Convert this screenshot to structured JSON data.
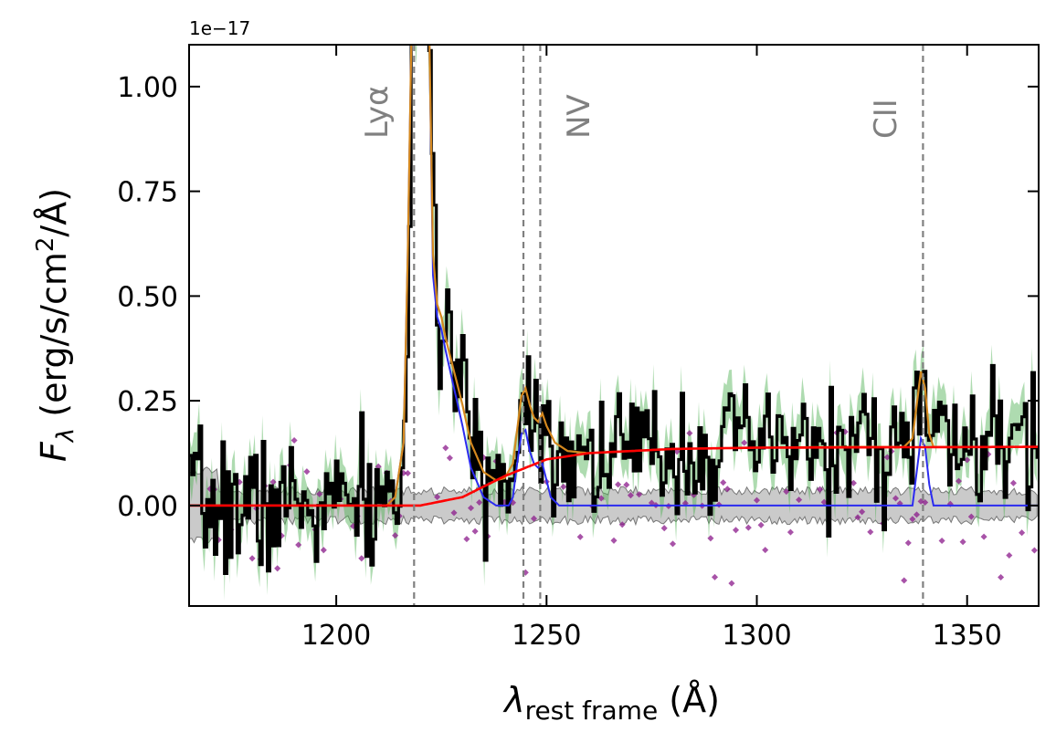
{
  "chart_data": {
    "type": "line",
    "x_unit_note": "rest-frame wavelength in Angstrom",
    "xlim": [
      1165,
      1367
    ],
    "ylim": [
      -0.24,
      1.1
    ],
    "y_offset_text": "1e−17",
    "xticks": [
      1200,
      1250,
      1300,
      1350
    ],
    "yticks": [
      0.0,
      0.25,
      0.5,
      0.75,
      1.0
    ],
    "ytick_labels": [
      "0.00",
      "0.25",
      "0.50",
      "0.75",
      "1.00"
    ],
    "xtick_labels": [
      "1200",
      "1250",
      "1300",
      "1350"
    ],
    "grid": false,
    "colors": {
      "spectrum": "#000000",
      "spectrum_band": "#4caf50",
      "error_band": "#9e9e9e",
      "model_total": "#d4881e",
      "model_lines": "#2b2bf0",
      "continuum": "#ff0000",
      "residual_points": "#8b1a8b",
      "line_markers": "#808080"
    },
    "line_markers": [
      {
        "name": "Lyα",
        "wavelength": 1218.5
      },
      {
        "name": "NV",
        "wavelength": 1244.5
      },
      {
        "name": "NV_2",
        "wavelength": 1248.5
      },
      {
        "name": "CII",
        "wavelength": 1339.5
      }
    ],
    "line_labels": [
      {
        "text": "Lyα",
        "wavelength": 1209.5
      },
      {
        "text": "NV",
        "wavelength": 1257.5
      },
      {
        "text": "CII",
        "wavelength": 1330.5
      }
    ],
    "continuum": {
      "x": [
        1165,
        1220,
        1230,
        1240,
        1250,
        1260,
        1280,
        1300,
        1367
      ],
      "y": [
        0.0,
        0.0,
        0.02,
        0.07,
        0.11,
        0.125,
        0.135,
        0.138,
        0.14
      ]
    },
    "model_total": {
      "x": [
        1165,
        1212,
        1214,
        1216,
        1217,
        1218,
        1219,
        1220,
        1221,
        1222,
        1223,
        1224,
        1225,
        1226,
        1228,
        1230,
        1232,
        1235,
        1238,
        1240,
        1242,
        1243,
        1244,
        1245,
        1246,
        1247,
        1248,
        1249,
        1250,
        1252,
        1255,
        1260,
        1280,
        1300,
        1320,
        1335,
        1337,
        1338,
        1339,
        1340,
        1341,
        1342,
        1367
      ],
      "y": [
        0.0,
        0.0,
        0.02,
        0.15,
        0.6,
        1.2,
        1.2,
        1.2,
        1.2,
        1.2,
        0.6,
        0.48,
        0.45,
        0.4,
        0.32,
        0.24,
        0.15,
        0.08,
        0.06,
        0.065,
        0.1,
        0.18,
        0.26,
        0.28,
        0.24,
        0.21,
        0.2,
        0.22,
        0.19,
        0.15,
        0.13,
        0.125,
        0.135,
        0.138,
        0.14,
        0.14,
        0.16,
        0.24,
        0.32,
        0.28,
        0.17,
        0.14,
        0.14
      ]
    },
    "model_lines": {
      "x": [
        1165,
        1212,
        1214,
        1216,
        1217,
        1218,
        1219,
        1220,
        1221,
        1222,
        1223,
        1224,
        1225,
        1226,
        1228,
        1230,
        1232,
        1235,
        1238,
        1240,
        1241,
        1242,
        1243,
        1244,
        1245,
        1246,
        1247,
        1248,
        1249,
        1250,
        1251,
        1253,
        1300,
        1337,
        1338,
        1339,
        1340,
        1341,
        1342,
        1367
      ],
      "y": [
        0.0,
        0.0,
        0.02,
        0.15,
        0.6,
        1.2,
        1.2,
        1.2,
        1.2,
        1.2,
        0.55,
        0.45,
        0.42,
        0.37,
        0.28,
        0.19,
        0.09,
        0.02,
        0.0,
        0.0,
        0.0,
        0.02,
        0.1,
        0.17,
        0.18,
        0.13,
        0.1,
        0.09,
        0.1,
        0.06,
        0.02,
        0.0,
        0.0,
        0.0,
        0.08,
        0.16,
        0.14,
        0.05,
        0.0,
        0.0
      ]
    },
    "flux_seed": 7,
    "flux_noise_sigma": 0.075,
    "error_sigma": 0.035,
    "residual_seed": 11
  }
}
